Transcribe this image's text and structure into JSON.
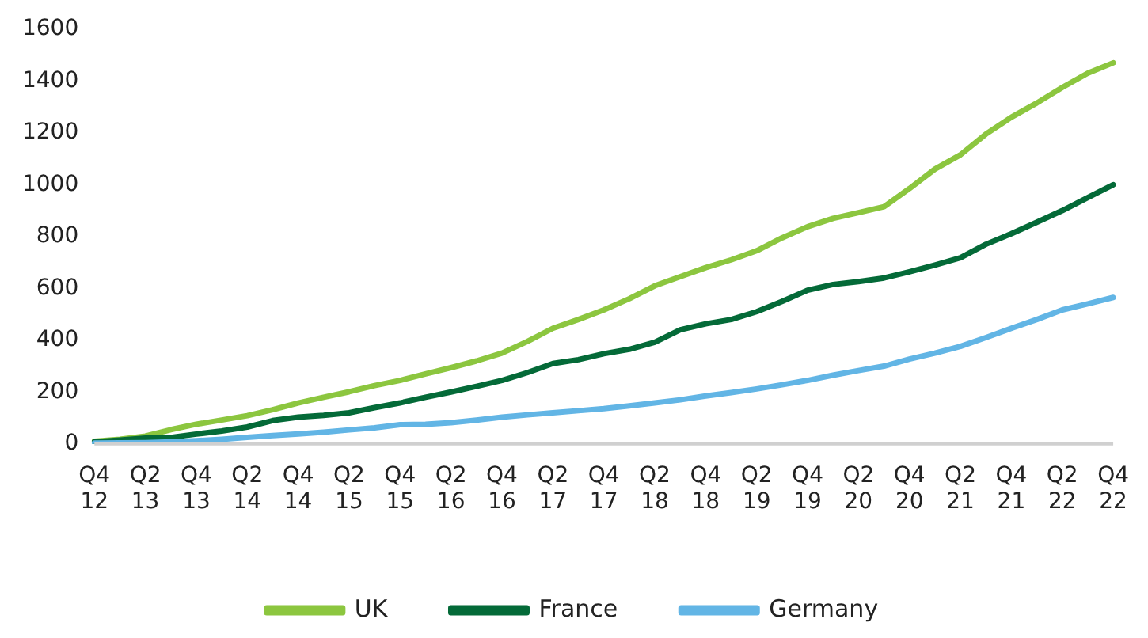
{
  "chart_data": {
    "type": "line",
    "categories": [
      "Q4\n12",
      null,
      "Q2\n13",
      null,
      "Q4\n13",
      null,
      "Q2\n14",
      null,
      "Q4\n14",
      null,
      "Q2\n15",
      null,
      "Q4\n15",
      null,
      "Q2\n16",
      null,
      "Q4\n16",
      null,
      "Q2\n17",
      null,
      "Q4\n17",
      null,
      "Q2\n18",
      null,
      "Q4\n18",
      null,
      "Q2\n19",
      null,
      "Q4\n19",
      null,
      "Q2\n20",
      null,
      "Q4\n20",
      null,
      "Q2\n21",
      null,
      "Q4\n21",
      null,
      "Q2\n22",
      null,
      "Q4\n22"
    ],
    "series": [
      {
        "name": "UK",
        "color": "#8cc63f",
        "values": [
          10,
          18,
          30,
          55,
          76,
          92,
          109,
          132,
          158,
          180,
          201,
          225,
          245,
          270,
          294,
          320,
          350,
          395,
          446,
          480,
          517,
          560,
          610,
          645,
          680,
          710,
          745,
          795,
          838,
          870,
          892,
          915,
          985,
          1060,
          1115,
          1195,
          1260,
          1315,
          1375,
          1430,
          1470
        ]
      },
      {
        "name": "France",
        "color": "#046a38",
        "values": [
          8,
          15,
          22,
          25,
          38,
          50,
          65,
          90,
          103,
          110,
          120,
          140,
          158,
          180,
          200,
          222,
          245,
          275,
          310,
          325,
          348,
          365,
          392,
          440,
          463,
          480,
          510,
          550,
          593,
          615,
          626,
          640,
          664,
          690,
          718,
          770,
          811,
          855,
          900,
          950,
          1000
        ]
      },
      {
        "name": "Germany",
        "color": "#62b5e5",
        "values": [
          3,
          4,
          5,
          8,
          12,
          18,
          25,
          32,
          38,
          45,
          54,
          62,
          74,
          76,
          82,
          92,
          103,
          112,
          120,
          128,
          136,
          147,
          158,
          170,
          185,
          198,
          212,
          228,
          245,
          265,
          283,
          300,
          327,
          350,
          376,
          410,
          446,
          480,
          517,
          540,
          565
        ]
      }
    ],
    "ylim": [
      0,
      1600
    ],
    "yticks": [
      0,
      200,
      400,
      600,
      800,
      1000,
      1200,
      1400,
      1600
    ],
    "grid": false,
    "legend": "bottom",
    "marker": "none",
    "line_style": "solid"
  }
}
